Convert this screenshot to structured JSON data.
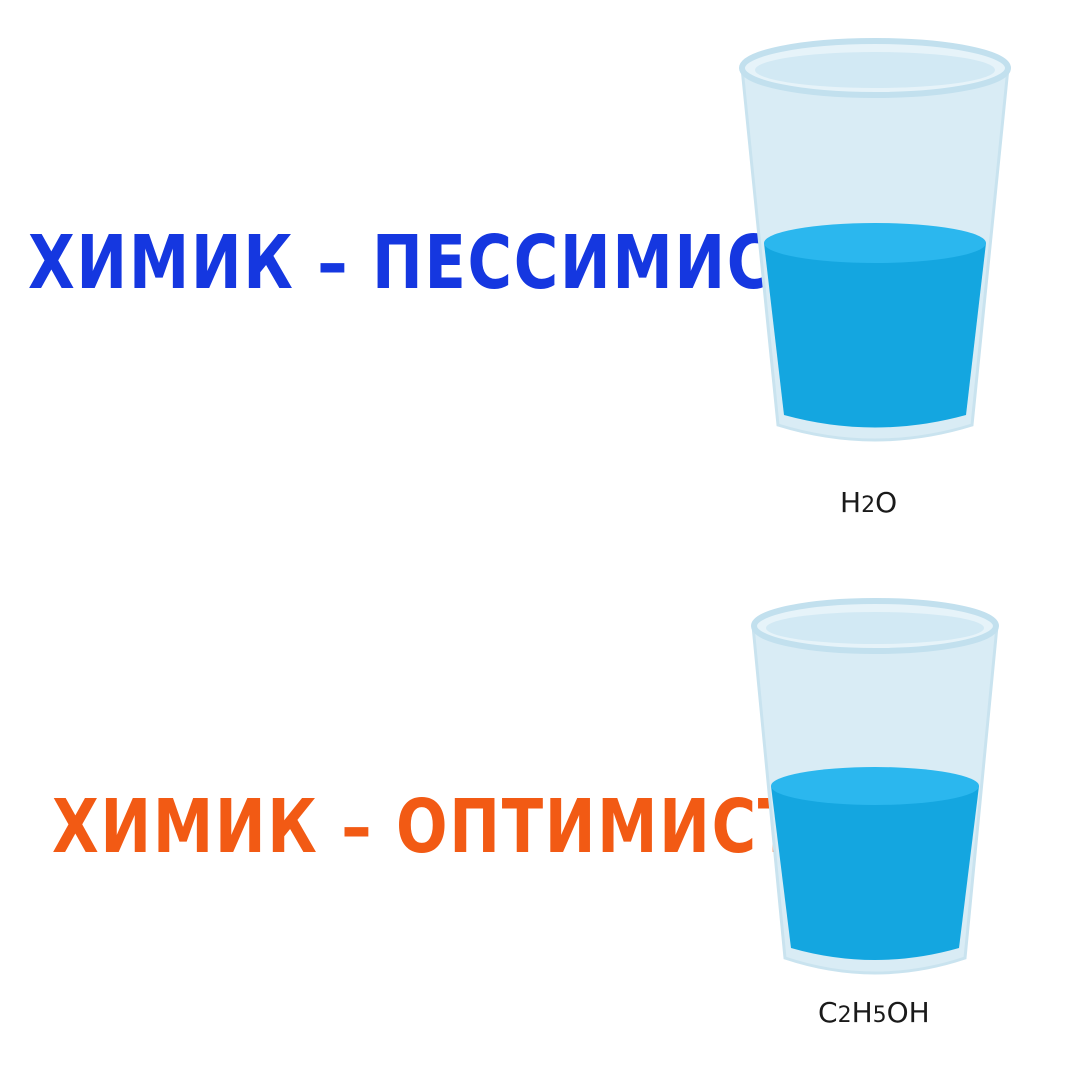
{
  "headlines": {
    "pessimist": {
      "text": "ХИМИК – ПЕССИМИСТ",
      "color": "#1537e0"
    },
    "optimist": {
      "text": "ХИМИК – ОПТИМИСТ",
      "color": "#f25a14"
    }
  },
  "glasses": {
    "top": {
      "fill_fraction": 0.55,
      "liquid_color": "#14a6e0"
    },
    "bottom": {
      "fill_fraction": 0.5,
      "liquid_color": "#14a6e0"
    }
  },
  "formulas": {
    "water": {
      "parts": [
        "H",
        "2",
        "O"
      ]
    },
    "ethanol": {
      "parts": [
        "C",
        "2",
        "H",
        "5",
        "OH"
      ]
    }
  }
}
